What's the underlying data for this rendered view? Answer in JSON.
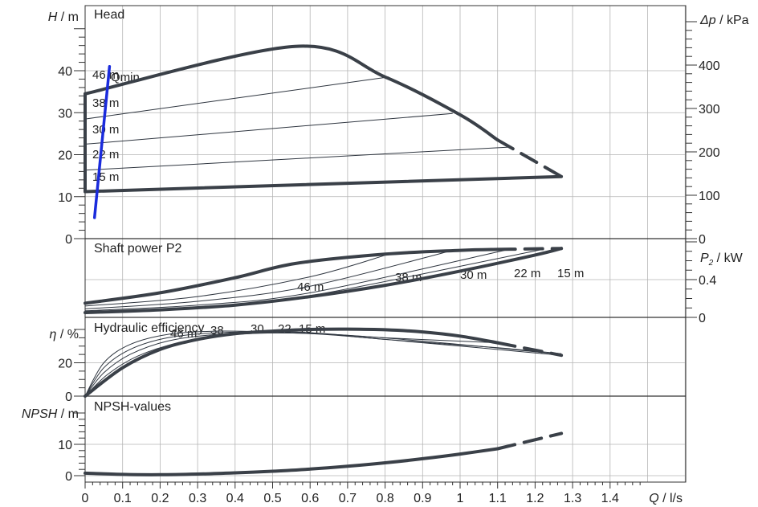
{
  "chart_data": [
    {
      "type": "line",
      "panel": "head",
      "title": "Head",
      "ylabel_var": "H",
      "ylabel_unit": " / m",
      "y2label_var": "Δp",
      "y2label_unit": " / kPa",
      "ylim": [
        0,
        50
      ],
      "yticks": [
        0,
        10,
        20,
        30,
        40
      ],
      "y2ticks": [
        0,
        100,
        200,
        300,
        400
      ],
      "curve_labels": [
        "46 m",
        "38 m",
        "30 m",
        "22 m",
        "15 m"
      ],
      "qmin_label": "Qmin",
      "max_curve": {
        "x": [
          0,
          0.56,
          0.8,
          1.0,
          1.1
        ],
        "y": [
          34.5,
          45.8,
          38.5,
          29.5,
          23.5
        ]
      },
      "max_curve_dashed": {
        "x": [
          1.1,
          1.27
        ],
        "y": [
          23.5,
          14.8
        ]
      },
      "min_curve": {
        "x": [
          0,
          1.27
        ],
        "y": [
          11.2,
          14.8
        ]
      },
      "left_edge": {
        "x": [
          0,
          0
        ],
        "y": [
          11.2,
          34.5
        ]
      },
      "speed_lines": [
        {
          "name": "38 m",
          "x": [
            0,
            0.81
          ],
          "y": [
            28.5,
            38.5
          ]
        },
        {
          "name": "30 m",
          "x": [
            0,
            0.98
          ],
          "y": [
            22.5,
            29.8
          ]
        },
        {
          "name": "22 m",
          "x": [
            0,
            1.13
          ],
          "y": [
            16.3,
            21.8
          ]
        }
      ],
      "qmin": {
        "x": [
          0.025,
          0.065
        ],
        "y": [
          5,
          41
        ]
      }
    },
    {
      "type": "line",
      "panel": "power",
      "title": "Shaft power P2",
      "ylabel_var": "P",
      "ylabel_sub": "2",
      "ylabel_unit": " / kW",
      "ylim": [
        0,
        0.8
      ],
      "yticks": [
        0,
        0.4
      ],
      "curve_labels": [
        "46 m",
        "38 m",
        "30 m",
        "22 m",
        "15 m"
      ],
      "max_curve": {
        "x": [
          0,
          0.2,
          0.4,
          0.56,
          0.8,
          1.0,
          1.1
        ],
        "y": [
          0.15,
          0.26,
          0.42,
          0.57,
          0.67,
          0.71,
          0.72
        ]
      },
      "max_curve_dashed": {
        "x": [
          1.1,
          1.27
        ],
        "y": [
          0.72,
          0.73
        ]
      },
      "min_curve": {
        "x": [
          0,
          0.2,
          0.4,
          0.6,
          0.8,
          1.0,
          1.2,
          1.27
        ],
        "y": [
          0.05,
          0.08,
          0.13,
          0.22,
          0.34,
          0.49,
          0.66,
          0.73
        ]
      },
      "speed_lines": [
        {
          "name": "38 m",
          "x": [
            0,
            0.3,
            0.6,
            0.81
          ],
          "y": [
            0.12,
            0.22,
            0.43,
            0.67
          ]
        },
        {
          "name": "30 m",
          "x": [
            0,
            0.3,
            0.6,
            0.98
          ],
          "y": [
            0.09,
            0.17,
            0.33,
            0.71
          ]
        },
        {
          "name": "22 m",
          "x": [
            0,
            0.3,
            0.6,
            1.13
          ],
          "y": [
            0.07,
            0.13,
            0.26,
            0.72
          ]
        },
        {
          "name": "15 m",
          "x": [
            0,
            0.3,
            0.6,
            1.22
          ],
          "y": [
            0.06,
            0.11,
            0.23,
            0.72
          ]
        }
      ]
    },
    {
      "type": "line",
      "panel": "efficiency",
      "title": "Hydraulic efficiency",
      "ylabel_var": "η",
      "ylabel_unit": " / %",
      "ylim": [
        0,
        40
      ],
      "yticks": [
        0,
        20
      ],
      "curve_labels": [
        "46 m",
        "38",
        "30",
        "22",
        "15 m"
      ],
      "max_curve": {
        "x": [
          0,
          0.1,
          0.2,
          0.3,
          0.4,
          0.5,
          0.6,
          0.7,
          0.8,
          0.9,
          1.0,
          1.1
        ],
        "y": [
          0,
          17,
          28,
          34,
          37.5,
          39,
          40,
          40.2,
          39.8,
          38.5,
          36,
          32
        ]
      },
      "max_curve_dashed": {
        "x": [
          1.1,
          1.27
        ],
        "y": [
          32,
          24.5
        ]
      },
      "speed_lines": [
        {
          "name": "46",
          "x": [
            0,
            0.05,
            0.12,
            0.22,
            0.35,
            0.5,
            0.6,
            0.8,
            1.1
          ],
          "y": [
            0,
            20,
            31,
            37,
            39,
            38.5,
            38,
            35,
            32
          ]
        },
        {
          "name": "38",
          "x": [
            0,
            0.05,
            0.12,
            0.22,
            0.35,
            0.5,
            0.6,
            0.8,
            1.1,
            1.27
          ],
          "y": [
            0,
            17,
            28,
            35,
            38,
            38.5,
            38,
            34,
            29,
            25.5
          ]
        },
        {
          "name": "30",
          "x": [
            0,
            0.05,
            0.12,
            0.22,
            0.35,
            0.5,
            0.7,
            1.0,
            1.27
          ],
          "y": [
            0,
            14,
            25,
            33,
            37,
            38,
            36.5,
            31,
            25
          ]
        },
        {
          "name": "22",
          "x": [
            0,
            0.06,
            0.14,
            0.25,
            0.4,
            0.6,
            0.9,
            1.27
          ],
          "y": [
            0,
            13,
            24,
            32,
            37,
            37.5,
            32,
            24.5
          ]
        }
      ]
    },
    {
      "type": "line",
      "panel": "npsh",
      "title": "NPSH-values",
      "ylabel_var": "NPSH",
      "ylabel_unit": " / m",
      "ylim": [
        0,
        20
      ],
      "yticks": [
        0,
        10
      ],
      "curve": {
        "x": [
          0,
          0.1,
          0.2,
          0.3,
          0.4,
          0.5,
          0.6,
          0.7,
          0.8,
          0.9,
          1.0,
          1.1
        ],
        "y": [
          0.8,
          0.4,
          0.3,
          0.5,
          0.9,
          1.4,
          2.1,
          3.0,
          4.1,
          5.4,
          6.9,
          8.6
        ]
      },
      "curve_dashed": {
        "x": [
          1.1,
          1.27
        ],
        "y": [
          8.6,
          13.5
        ]
      }
    }
  ],
  "x_axis": {
    "label_var": "Q",
    "label_unit": " / l/s",
    "xlim": [
      0,
      1.6
    ],
    "ticks": [
      0,
      0.1,
      0.2,
      0.3,
      0.4,
      0.5,
      0.6,
      0.7,
      0.8,
      0.9,
      1,
      1.1,
      1.2,
      1.3,
      1.4
    ],
    "grid": true
  }
}
